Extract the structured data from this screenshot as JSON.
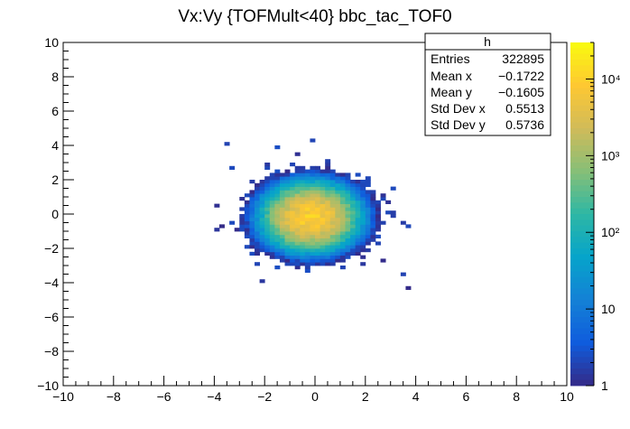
{
  "chart_data": {
    "type": "heatmap",
    "title": "Vx:Vy {TOFMult<40} bbc_tac_TOF0",
    "xlabel": "",
    "ylabel": "",
    "xlim": [
      -10,
      10
    ],
    "ylim": [
      -10,
      10
    ],
    "x_ticks": [
      -10,
      -8,
      -6,
      -4,
      -2,
      0,
      2,
      4,
      6,
      8,
      10
    ],
    "y_ticks": [
      -10,
      -8,
      -6,
      -4,
      -2,
      0,
      2,
      4,
      6,
      8,
      10
    ],
    "x_tick_labels": [
      "−10",
      "−8",
      "−6",
      "−4",
      "−2",
      "0",
      "2",
      "4",
      "6",
      "8",
      "10"
    ],
    "y_tick_labels": [
      "−10",
      "−8",
      "−6",
      "−4",
      "−2",
      "0",
      "2",
      "4",
      "6",
      "8",
      "10"
    ],
    "log_z": true,
    "z_range": [
      1,
      30000
    ],
    "z_ticks": [
      1,
      10,
      100,
      1000,
      10000
    ],
    "z_tick_labels": [
      "1",
      "10",
      "10²",
      "10³",
      "10⁴"
    ],
    "bins": [
      100,
      100
    ],
    "distribution": {
      "shape": "2D Gaussian",
      "center_x": -0.17,
      "center_y": -0.16,
      "sigma_x": 0.55,
      "sigma_y": 0.57,
      "peak_counts": 10000
    },
    "colormap": [
      "#352a87",
      "#0f5cdd",
      "#1481d6",
      "#06a4ca",
      "#2eb7a4",
      "#87bf77",
      "#d1bb59",
      "#fec832",
      "#f9fb0e"
    ],
    "grid": false,
    "stats_box": {
      "name": "h",
      "rows": [
        {
          "label": "Entries",
          "value": "322895"
        },
        {
          "label": "Mean x",
          "value": "−0.1722"
        },
        {
          "label": "Mean y",
          "value": "−0.1605"
        },
        {
          "label": "Std Dev x",
          "value": "0.5513"
        },
        {
          "label": "Std Dev y",
          "value": "0.5736"
        }
      ]
    }
  }
}
